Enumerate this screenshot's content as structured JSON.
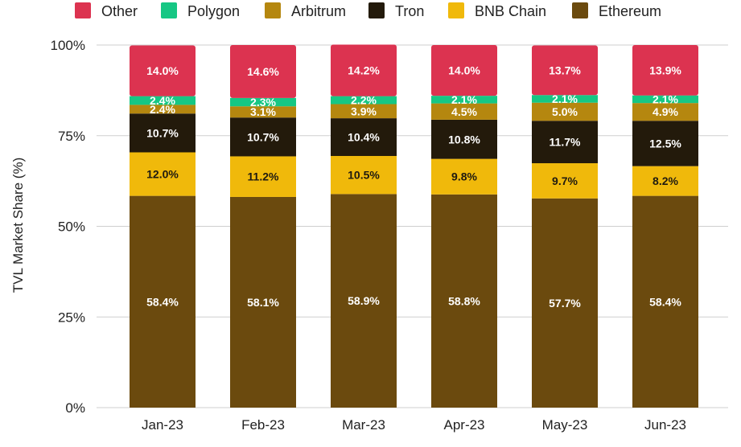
{
  "chart_data": {
    "type": "bar",
    "stacked": true,
    "categories": [
      "Jan-23",
      "Feb-23",
      "Mar-23",
      "Apr-23",
      "May-23",
      "Jun-23"
    ],
    "ylabel": "TVL Market Share (%)",
    "xlabel": "",
    "ylim": [
      0,
      100
    ],
    "yticks": [
      "0%",
      "25%",
      "50%",
      "75%",
      "100%"
    ],
    "ytick_values": [
      0,
      25,
      50,
      75,
      100
    ],
    "grid": true,
    "legend_position": "top",
    "series": [
      {
        "name": "Ethereum",
        "color": "#6b4a0e",
        "label_color": "#ffffff",
        "values": [
          58.4,
          58.1,
          58.9,
          58.8,
          57.7,
          58.4
        ],
        "labels": [
          "58.4%",
          "58.1%",
          "58.9%",
          "58.8%",
          "57.7%",
          "58.4%"
        ]
      },
      {
        "name": "BNB Chain",
        "color": "#f0b90b",
        "label_color": "#1f1a10",
        "values": [
          12.0,
          11.2,
          10.5,
          9.8,
          9.7,
          8.2
        ],
        "labels": [
          "12.0%",
          "11.2%",
          "10.5%",
          "9.8%",
          "9.7%",
          "8.2%"
        ]
      },
      {
        "name": "Tron",
        "color": "#231a0b",
        "label_color": "#ffffff",
        "values": [
          10.7,
          10.7,
          10.4,
          10.8,
          11.7,
          12.5
        ],
        "labels": [
          "10.7%",
          "10.7%",
          "10.4%",
          "10.8%",
          "11.7%",
          "12.5%"
        ]
      },
      {
        "name": "Arbitrum",
        "color": "#b5870f",
        "label_color": "#ffffff",
        "values": [
          2.4,
          3.1,
          3.9,
          4.5,
          5.0,
          4.9
        ],
        "labels": [
          "2.4%",
          "3.1%",
          "3.9%",
          "4.5%",
          "5.0%",
          "4.9%"
        ]
      },
      {
        "name": "Polygon",
        "color": "#16c784",
        "label_color": "#ffffff",
        "values": [
          2.4,
          2.3,
          2.2,
          2.1,
          2.1,
          2.1
        ],
        "labels": [
          "2.4%",
          "2.3%",
          "2.2%",
          "2.1%",
          "2.1%",
          "2.1%"
        ]
      },
      {
        "name": "Other",
        "color": "#dc3350",
        "label_color": "#ffffff",
        "values": [
          14.0,
          14.6,
          14.2,
          14.0,
          13.7,
          13.9
        ],
        "labels": [
          "14.0%",
          "14.6%",
          "14.2%",
          "14.0%",
          "13.7%",
          "13.9%"
        ]
      }
    ],
    "legend_order": [
      "Other",
      "Polygon",
      "Arbitrum",
      "Tron",
      "BNB Chain",
      "Ethereum"
    ]
  }
}
